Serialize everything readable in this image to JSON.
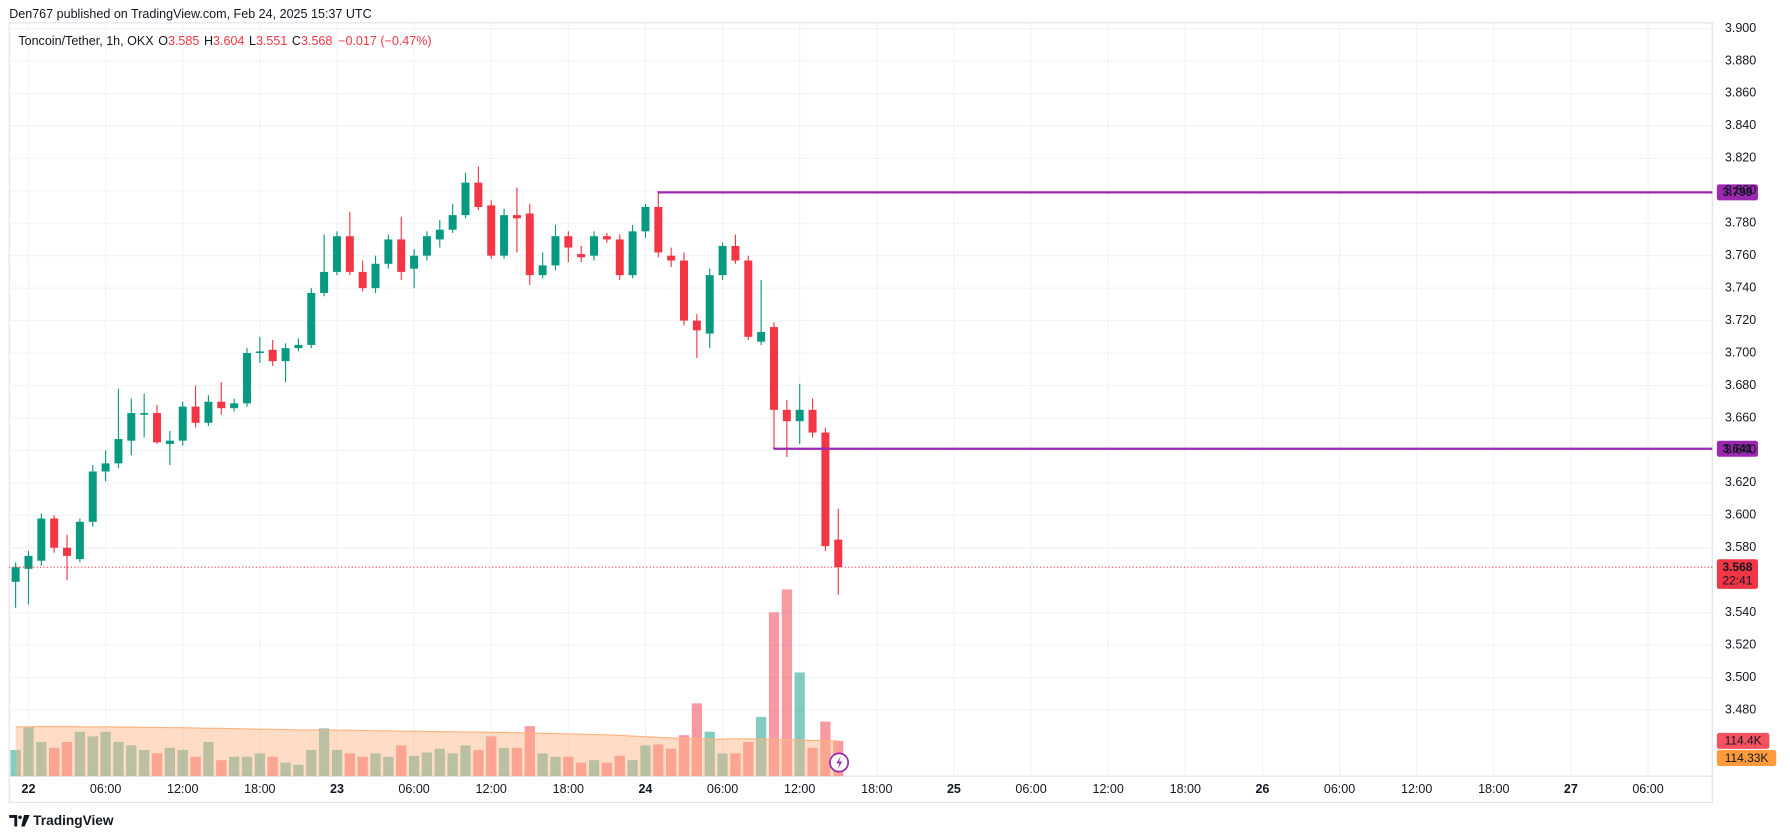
{
  "header": {
    "publisher": "Den767 published on TradingView.com, Feb 24, 2025 15:37 UTC",
    "symbol": "Toncoin/Tether, 1h, OKX",
    "ohlc": [
      {
        "key": "O",
        "value": "3.585"
      },
      {
        "key": "H",
        "value": "3.604"
      },
      {
        "key": "L",
        "value": "3.551"
      },
      {
        "key": "C",
        "value": "3.568"
      }
    ],
    "change": "−0.017 (−0.47%)",
    "countdown": "22:41"
  },
  "footer": {
    "brand": "TradingView"
  },
  "chart_data": {
    "type": "candlestick",
    "xlim": [
      "2025-02-21T22:30",
      "2025-02-27T11:00"
    ],
    "xticks": [
      {
        "value": "2025-02-22T00:00",
        "label": "22"
      },
      {
        "value": "2025-02-22T06:00",
        "label": "06:00"
      },
      {
        "value": "2025-02-22T12:00",
        "label": "12:00"
      },
      {
        "value": "2025-02-22T18:00",
        "label": "18:00"
      },
      {
        "value": "2025-02-23T00:00",
        "label": "23"
      },
      {
        "value": "2025-02-23T06:00",
        "label": "06:00"
      },
      {
        "value": "2025-02-23T12:00",
        "label": "12:00"
      },
      {
        "value": "2025-02-23T18:00",
        "label": "18:00"
      },
      {
        "value": "2025-02-24T00:00",
        "label": "24"
      },
      {
        "value": "2025-02-24T06:00",
        "label": "06:00"
      },
      {
        "value": "2025-02-24T12:00",
        "label": "12:00"
      },
      {
        "value": "2025-02-24T18:00",
        "label": "18:00"
      },
      {
        "value": "2025-02-25T00:00",
        "label": "25"
      },
      {
        "value": "2025-02-25T06:00",
        "label": "06:00"
      },
      {
        "value": "2025-02-25T12:00",
        "label": "12:00"
      },
      {
        "value": "2025-02-25T18:00",
        "label": "18:00"
      },
      {
        "value": "2025-02-26T00:00",
        "label": "26"
      },
      {
        "value": "2025-02-26T06:00",
        "label": "06:00"
      },
      {
        "value": "2025-02-26T12:00",
        "label": "12:00"
      },
      {
        "value": "2025-02-26T18:00",
        "label": "18:00"
      },
      {
        "value": "2025-02-27T00:00",
        "label": "27"
      },
      {
        "value": "2025-02-27T06:00",
        "label": "06:00"
      }
    ],
    "ylim": [
      3.4392,
      3.9035
    ],
    "yticks": [
      {
        "value": 3.9,
        "label": "3.900"
      },
      {
        "value": 3.88,
        "label": "3.880"
      },
      {
        "value": 3.86,
        "label": "3.860"
      },
      {
        "value": 3.84,
        "label": "3.840"
      },
      {
        "value": 3.82,
        "label": "3.820"
      },
      {
        "value": 3.8,
        "label": "3.800"
      },
      {
        "value": 3.78,
        "label": "3.780"
      },
      {
        "value": 3.76,
        "label": "3.760"
      },
      {
        "value": 3.74,
        "label": "3.740"
      },
      {
        "value": 3.72,
        "label": "3.720"
      },
      {
        "value": 3.7,
        "label": "3.700"
      },
      {
        "value": 3.68,
        "label": "3.680"
      },
      {
        "value": 3.66,
        "label": "3.660"
      },
      {
        "value": 3.64,
        "label": "3.640"
      },
      {
        "value": 3.62,
        "label": "3.620"
      },
      {
        "value": 3.6,
        "label": "3.600"
      },
      {
        "value": 3.58,
        "label": "3.580"
      },
      {
        "value": 3.54,
        "label": "3.540"
      },
      {
        "value": 3.52,
        "label": "3.520"
      },
      {
        "value": 3.5,
        "label": "3.500"
      },
      {
        "value": 3.48,
        "label": "3.480"
      }
    ],
    "grid": true,
    "up_color": "#089981",
    "down_color": "#f23645",
    "series": [
      {
        "name": "Toncoin/Tether",
        "x": [
          "2025-02-21T23:00",
          "2025-02-22T00:00",
          "2025-02-22T01:00",
          "2025-02-22T02:00",
          "2025-02-22T03:00",
          "2025-02-22T04:00",
          "2025-02-22T05:00",
          "2025-02-22T06:00",
          "2025-02-22T07:00",
          "2025-02-22T08:00",
          "2025-02-22T09:00",
          "2025-02-22T10:00",
          "2025-02-22T11:00",
          "2025-02-22T12:00",
          "2025-02-22T13:00",
          "2025-02-22T14:00",
          "2025-02-22T15:00",
          "2025-02-22T16:00",
          "2025-02-22T17:00",
          "2025-02-22T18:00",
          "2025-02-22T19:00",
          "2025-02-22T20:00",
          "2025-02-22T21:00",
          "2025-02-22T22:00",
          "2025-02-22T23:00",
          "2025-02-23T00:00",
          "2025-02-23T01:00",
          "2025-02-23T02:00",
          "2025-02-23T03:00",
          "2025-02-23T04:00",
          "2025-02-23T05:00",
          "2025-02-23T06:00",
          "2025-02-23T07:00",
          "2025-02-23T08:00",
          "2025-02-23T09:00",
          "2025-02-23T10:00",
          "2025-02-23T11:00",
          "2025-02-23T12:00",
          "2025-02-23T13:00",
          "2025-02-23T14:00",
          "2025-02-23T15:00",
          "2025-02-23T16:00",
          "2025-02-23T17:00",
          "2025-02-23T18:00",
          "2025-02-23T19:00",
          "2025-02-23T20:00",
          "2025-02-23T21:00",
          "2025-02-23T22:00",
          "2025-02-23T23:00",
          "2025-02-24T00:00",
          "2025-02-24T01:00",
          "2025-02-24T02:00",
          "2025-02-24T03:00",
          "2025-02-24T04:00",
          "2025-02-24T05:00",
          "2025-02-24T06:00",
          "2025-02-24T07:00",
          "2025-02-24T08:00",
          "2025-02-24T09:00",
          "2025-02-24T10:00",
          "2025-02-24T11:00",
          "2025-02-24T12:00",
          "2025-02-24T13:00",
          "2025-02-24T14:00",
          "2025-02-24T15:00"
        ],
        "open": [
          3.559,
          3.567,
          3.572,
          3.598,
          3.58,
          3.573,
          3.596,
          3.627,
          3.632,
          3.646,
          3.662,
          3.663,
          3.644,
          3.646,
          3.667,
          3.657,
          3.67,
          3.666,
          3.669,
          3.7,
          3.702,
          3.695,
          3.703,
          3.705,
          3.737,
          3.75,
          3.772,
          3.75,
          3.74,
          3.755,
          3.77,
          3.752,
          3.76,
          3.77,
          3.776,
          3.785,
          3.805,
          3.791,
          3.76,
          3.785,
          3.786,
          3.748,
          3.754,
          3.772,
          3.761,
          3.76,
          3.772,
          3.77,
          3.748,
          3.775,
          3.79,
          3.76,
          3.757,
          3.72,
          3.712,
          3.748,
          3.766,
          3.757,
          3.707,
          3.716,
          3.665,
          3.658,
          3.665,
          3.651,
          3.585
        ],
        "high": [
          3.571,
          3.578,
          3.601,
          3.6,
          3.588,
          3.598,
          3.631,
          3.64,
          3.678,
          3.672,
          3.675,
          3.668,
          3.652,
          3.67,
          3.68,
          3.674,
          3.682,
          3.672,
          3.703,
          3.71,
          3.708,
          3.706,
          3.709,
          3.74,
          3.773,
          3.775,
          3.787,
          3.757,
          3.76,
          3.773,
          3.784,
          3.764,
          3.775,
          3.782,
          3.792,
          3.811,
          3.815,
          3.794,
          3.789,
          3.802,
          3.792,
          3.762,
          3.779,
          3.775,
          3.766,
          3.775,
          3.774,
          3.773,
          3.779,
          3.792,
          3.799,
          3.765,
          3.762,
          3.724,
          3.752,
          3.768,
          3.773,
          3.76,
          3.745,
          3.719,
          3.671,
          3.681,
          3.672,
          3.654,
          3.604
        ],
        "low": [
          3.543,
          3.545,
          3.569,
          3.577,
          3.56,
          3.571,
          3.593,
          3.621,
          3.629,
          3.637,
          3.648,
          3.644,
          3.631,
          3.643,
          3.654,
          3.655,
          3.662,
          3.664,
          3.667,
          3.694,
          3.692,
          3.682,
          3.701,
          3.703,
          3.735,
          3.748,
          3.748,
          3.738,
          3.737,
          3.752,
          3.745,
          3.74,
          3.757,
          3.765,
          3.774,
          3.783,
          3.788,
          3.758,
          3.758,
          3.762,
          3.742,
          3.746,
          3.751,
          3.756,
          3.756,
          3.757,
          3.768,
          3.745,
          3.746,
          3.771,
          3.759,
          3.753,
          3.717,
          3.697,
          3.703,
          3.745,
          3.755,
          3.708,
          3.705,
          3.641,
          3.636,
          3.644,
          3.648,
          3.578,
          3.551
        ],
        "close": [
          3.568,
          3.575,
          3.598,
          3.58,
          3.575,
          3.596,
          3.627,
          3.632,
          3.647,
          3.663,
          3.663,
          3.645,
          3.646,
          3.667,
          3.657,
          3.67,
          3.666,
          3.669,
          3.7,
          3.701,
          3.695,
          3.703,
          3.705,
          3.737,
          3.75,
          3.772,
          3.75,
          3.74,
          3.755,
          3.77,
          3.75,
          3.76,
          3.772,
          3.776,
          3.785,
          3.805,
          3.79,
          3.76,
          3.785,
          3.783,
          3.748,
          3.754,
          3.772,
          3.765,
          3.759,
          3.772,
          3.77,
          3.748,
          3.775,
          3.79,
          3.762,
          3.757,
          3.72,
          3.714,
          3.748,
          3.766,
          3.757,
          3.71,
          3.713,
          3.665,
          3.658,
          3.665,
          3.651,
          3.581,
          3.568
        ]
      }
    ],
    "volume": {
      "name": "Volume",
      "up_color": "rgba(8,153,129,0.5)",
      "down_color": "rgba(242,54,69,0.5)",
      "values": [
        85,
        159,
        111,
        92,
        111,
        144,
        129,
        144,
        111,
        100,
        85,
        74,
        92,
        85,
        63,
        111,
        52,
        63,
        63,
        74,
        63,
        44,
        37,
        85,
        155,
        85,
        74,
        63,
        74,
        63,
        100,
        66,
        77,
        89,
        74,
        100,
        85,
        129,
        92,
        92,
        162,
        74,
        63,
        63,
        44,
        52,
        44,
        66,
        52,
        100,
        103,
        89,
        133,
        236,
        144,
        74,
        74,
        111,
        192,
        531,
        605,
        336,
        92,
        177,
        114.4
      ],
      "last_label": "114.4K",
      "label_color": "#f7525f"
    },
    "volume_lim": [
      0,
      610
    ],
    "volume_ma": {
      "color": "#ffb27f",
      "values": [
        160,
        160,
        161,
        161,
        161,
        160,
        160,
        160,
        159,
        159,
        158,
        158,
        157,
        157,
        156,
        155,
        155,
        154,
        153,
        152,
        152,
        151,
        150,
        150,
        150,
        149,
        149,
        148,
        147,
        147,
        146,
        146,
        145,
        144,
        144,
        143,
        143,
        142,
        142,
        141,
        140,
        139,
        138,
        137,
        136,
        135,
        134,
        132,
        130,
        128,
        126,
        124,
        122,
        121,
        120,
        120,
        121,
        121,
        120,
        119,
        118,
        117,
        116,
        115,
        114.33
      ],
      "last_label": "114.33K",
      "label_color": "#ff9b3d"
    },
    "levels": [
      {
        "value": 3.799,
        "start": "2025-02-24T01:00",
        "color": "#9c27b0"
      },
      {
        "value": 3.641,
        "start": "2025-02-24T10:00",
        "color": "#9c27b0"
      }
    ]
  }
}
